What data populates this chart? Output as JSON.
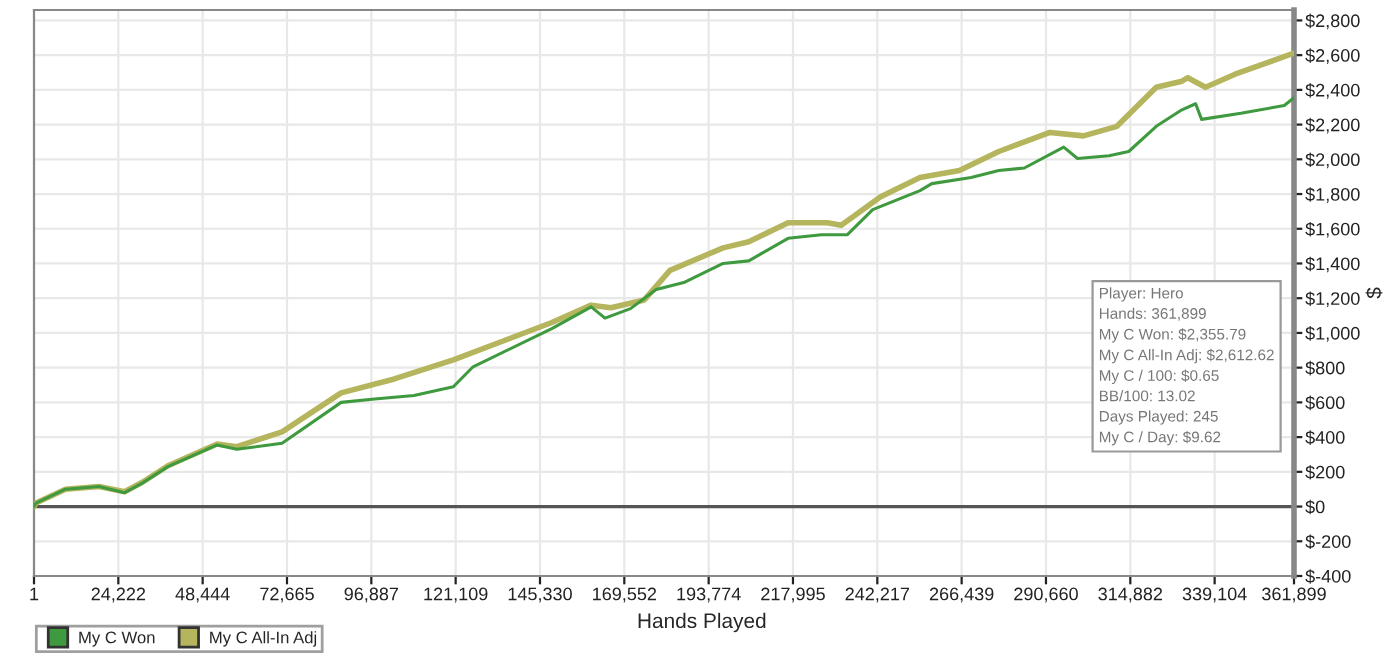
{
  "chart_data": {
    "type": "line",
    "xlabel": "Hands Played",
    "ylabel": "$",
    "xlim": [
      1,
      361899
    ],
    "ylim": [
      -400,
      2860
    ],
    "xticks": [
      1,
      {
        "value": 24222,
        "label": "24,222"
      },
      {
        "value": 48444,
        "label": "48,444"
      },
      {
        "value": 72665,
        "label": "72,665"
      },
      {
        "value": 96887,
        "label": "96,887"
      },
      {
        "value": 121109,
        "label": "121,109"
      },
      {
        "value": 145330,
        "label": "145,330"
      },
      {
        "value": 169552,
        "label": "169,552"
      },
      {
        "value": 193774,
        "label": "193,774"
      },
      {
        "value": 217995,
        "label": "217,995"
      },
      {
        "value": 242217,
        "label": "242,217"
      },
      {
        "value": 266439,
        "label": "266,439"
      },
      {
        "value": 290660,
        "label": "290,660"
      },
      {
        "value": 314882,
        "label": "314,882"
      },
      {
        "value": 339104,
        "label": "339,104"
      },
      {
        "value": 361899,
        "label": "361,899"
      }
    ],
    "yticks": [
      {
        "value": -400,
        "label": "$-400"
      },
      {
        "value": -200,
        "label": "$-200"
      },
      {
        "value": 0,
        "label": "$0"
      },
      {
        "value": 200,
        "label": "$200"
      },
      {
        "value": 400,
        "label": "$400"
      },
      {
        "value": 600,
        "label": "$600"
      },
      {
        "value": 800,
        "label": "$800"
      },
      {
        "value": 1000,
        "label": "$1,000"
      },
      {
        "value": 1200,
        "label": "$1,200"
      },
      {
        "value": 1400,
        "label": "$1,400"
      },
      {
        "value": 1600,
        "label": "$1,600"
      },
      {
        "value": 1800,
        "label": "$1,800"
      },
      {
        "value": 2000,
        "label": "$2,000"
      },
      {
        "value": 2200,
        "label": "$2,200"
      },
      {
        "value": 2400,
        "label": "$2,400"
      },
      {
        "value": 2600,
        "label": "$2,600"
      },
      {
        "value": 2800,
        "label": "$2,800"
      }
    ],
    "grid": true,
    "legend": "bottom left",
    "line_style": "solid",
    "ref_lines": [
      {
        "axis": "y",
        "value": 0,
        "color": "#555555"
      }
    ],
    "annotations": [
      "Player: Hero",
      "Hands: 361,899",
      "My C Won: $2,355.79",
      "My C All-In Adj: $2,612.62",
      "My C / 100: $0.65",
      "BB/100: 13.02",
      "Days Played: 245",
      "My C / Day: $9.62"
    ],
    "series": [
      {
        "name": "My C Won",
        "color": "#3f9a3f",
        "x": [
          1,
          566,
          9050,
          18660,
          26010,
          31100,
          38450,
          52590,
          58250,
          71250,
          88220,
          97830,
          109140,
          120450,
          126110,
          148730,
          160040,
          164000,
          171340,
          178700,
          186620,
          197930,
          205280,
          216590,
          226200,
          233550,
          240900,
          254480,
          257870,
          269180,
          277100,
          284450,
          295760,
          299720,
          308770,
          314420,
          322340,
          329700,
          333650,
          335350,
          346660,
          359100,
          361899
        ],
        "values": [
          0,
          20,
          100,
          115,
          80,
          135,
          230,
          355,
          330,
          365,
          600,
          620,
          640,
          690,
          805,
          1025,
          1150,
          1085,
          1140,
          1250,
          1290,
          1400,
          1415,
          1545,
          1565,
          1565,
          1710,
          1820,
          1860,
          1895,
          1935,
          1950,
          2070,
          2005,
          2020,
          2045,
          2190,
          2285,
          2320,
          2230,
          2265,
          2310,
          2355
        ]
      },
      {
        "name": "My C All-In Adj",
        "color": "#b5b55e",
        "x": [
          1,
          566,
          9050,
          18660,
          26010,
          31100,
          38450,
          52590,
          58250,
          71250,
          88220,
          103490,
          120450,
          148730,
          160040,
          165690,
          175300,
          182660,
          197930,
          205280,
          216590,
          227900,
          231860,
          243170,
          254480,
          265790,
          277100,
          291800,
          301420,
          311030,
          322340,
          329700,
          331390,
          336480,
          344960,
          361899
        ],
        "values": [
          0,
          20,
          100,
          115,
          85,
          140,
          235,
          360,
          345,
          430,
          655,
          735,
          845,
          1060,
          1160,
          1145,
          1190,
          1360,
          1490,
          1525,
          1635,
          1635,
          1620,
          1785,
          1895,
          1935,
          2045,
          2155,
          2135,
          2190,
          2415,
          2450,
          2470,
          2415,
          2490,
          2612
        ]
      }
    ]
  }
}
